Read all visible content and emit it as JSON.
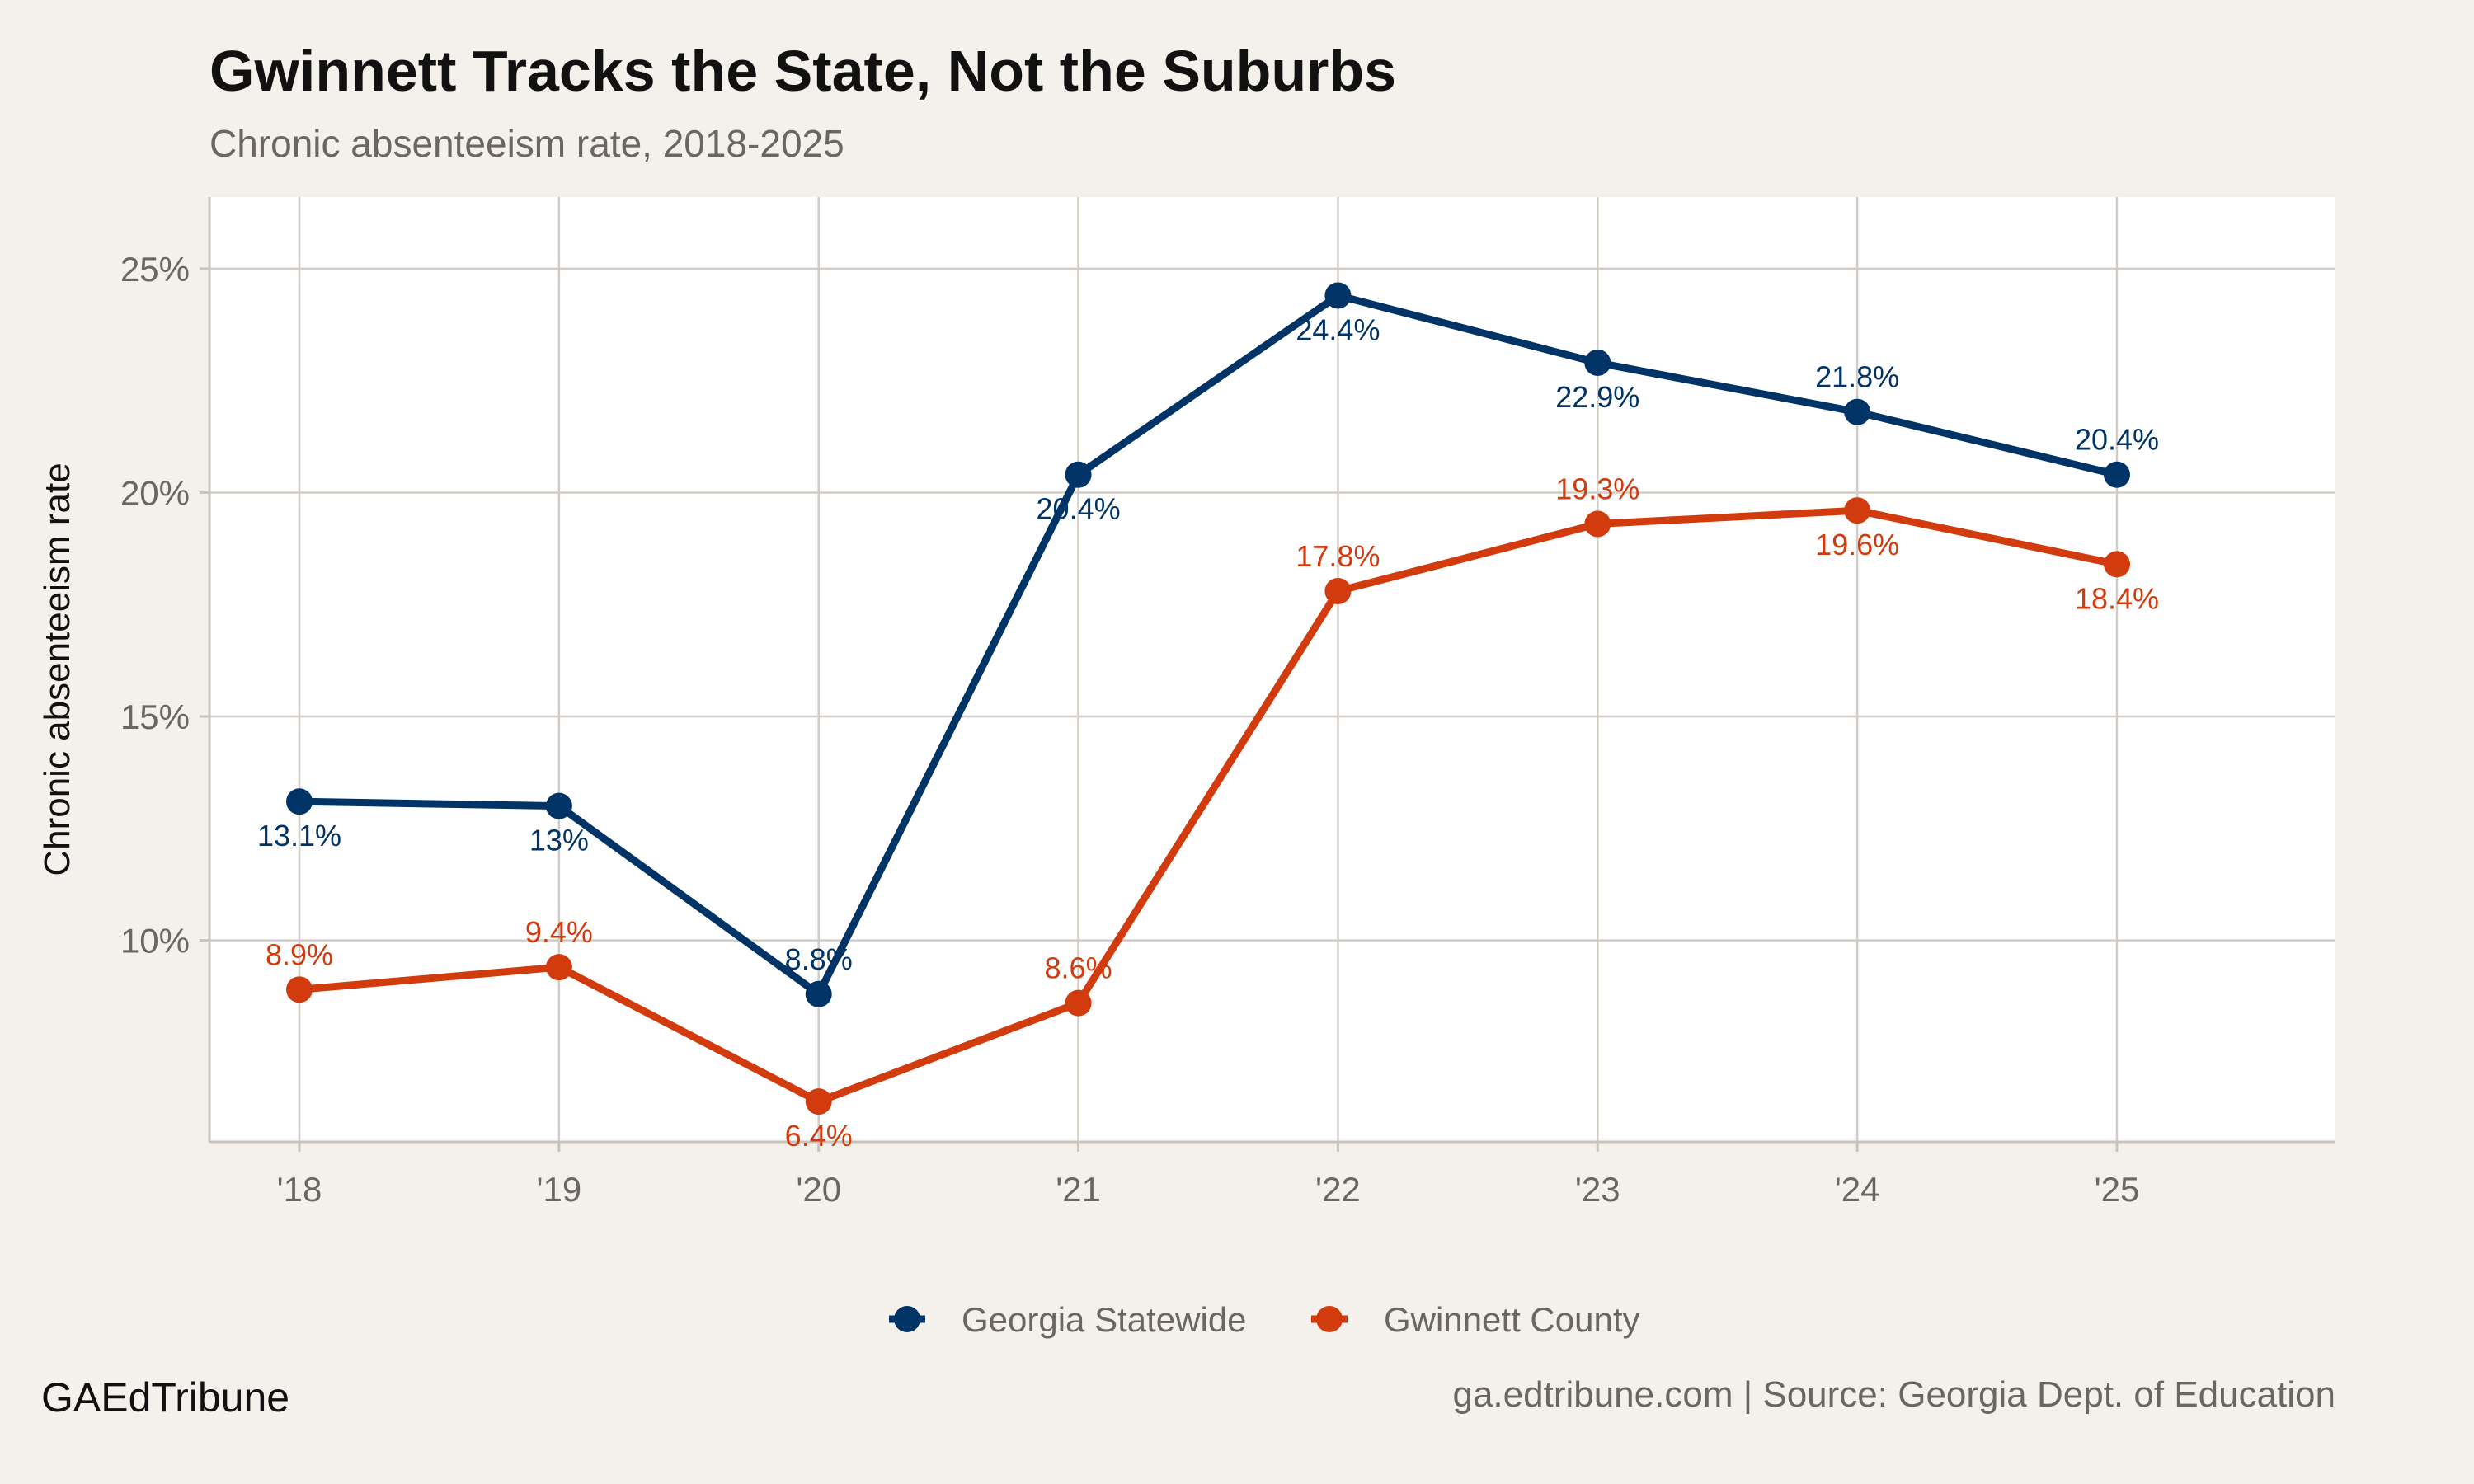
{
  "chart_data": {
    "type": "line",
    "title": "Gwinnett Tracks the State, Not the Suburbs",
    "subtitle": "Chronic absenteeism rate, 2018-2025",
    "xlabel": "",
    "ylabel": "Chronic absenteeism rate",
    "categories": [
      "'18",
      "'19",
      "'20",
      "'21",
      "'22",
      "'23",
      "'24",
      "'25"
    ],
    "yticks": [
      10,
      15,
      20,
      25
    ],
    "ytick_labels": [
      "10%",
      "15%",
      "20%",
      "25%"
    ],
    "ylim": [
      5.5,
      26.6
    ],
    "grid": true,
    "legend_position": "bottom",
    "series": [
      {
        "name": "Georgia Statewide",
        "color": "#003366",
        "values": [
          13.1,
          13.0,
          8.8,
          20.4,
          24.4,
          22.9,
          21.8,
          20.4
        ],
        "labels": [
          "13.1%",
          "13%",
          "8.8%",
          "20.4%",
          "24.4%",
          "22.9%",
          "21.8%",
          "20.4%"
        ],
        "label_position": "below"
      },
      {
        "name": "Gwinnett County",
        "color": "#d13b0d",
        "values": [
          8.9,
          9.4,
          6.4,
          8.6,
          17.8,
          19.3,
          19.6,
          18.4
        ],
        "labels": [
          "8.9%",
          "9.4%",
          "6.4%",
          "8.6%",
          "17.8%",
          "19.3%",
          "19.6%",
          "18.4%"
        ],
        "label_position": "above"
      }
    ]
  },
  "footer": {
    "brand": "GAEdTribune",
    "source": "ga.edtribune.com | Source: Georgia Dept. of Education"
  }
}
